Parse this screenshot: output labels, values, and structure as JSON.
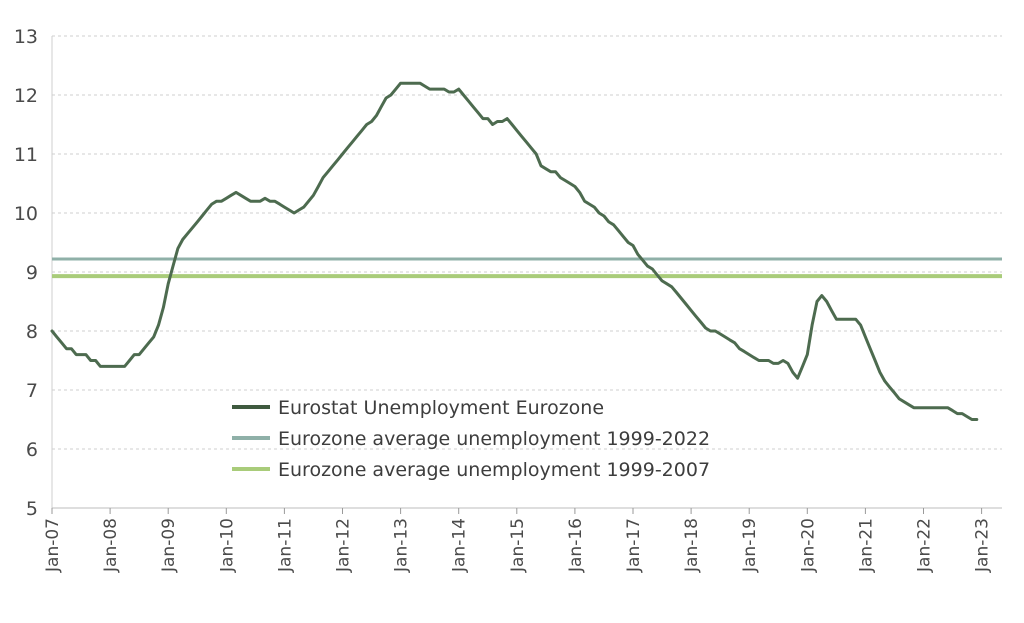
{
  "chart_data": {
    "type": "line",
    "title": "",
    "xlabel": "",
    "ylabel": "",
    "ylim": [
      5,
      13
    ],
    "grid": true,
    "legend_position": "bottom-left inside",
    "y_ticks": [
      "5",
      "6",
      "7",
      "8",
      "9",
      "10",
      "11",
      "12",
      "13"
    ],
    "x_ticks": [
      "Jan-07",
      "Jan-08",
      "Jan-09",
      "Jan-10",
      "Jan-11",
      "Jan-12",
      "Jan-13",
      "Jan-14",
      "Jan-15",
      "Jan-16",
      "Jan-17",
      "Jan-18",
      "Jan-19",
      "Jan-20",
      "Jan-21",
      "Jan-22",
      "Jan-23"
    ],
    "series": [
      {
        "name": "Eurostat Unemployment Eurozone",
        "color": "#4d6b4f",
        "x_start": "Jan-07",
        "values": [
          8.0,
          7.9,
          7.8,
          7.7,
          7.7,
          7.6,
          7.6,
          7.6,
          7.5,
          7.5,
          7.4,
          7.4,
          7.4,
          7.4,
          7.4,
          7.4,
          7.5,
          7.6,
          7.6,
          7.7,
          7.8,
          7.9,
          8.1,
          8.4,
          8.8,
          9.1,
          9.4,
          9.55,
          9.65,
          9.75,
          9.85,
          9.95,
          10.05,
          10.15,
          10.2,
          10.2,
          10.25,
          10.3,
          10.35,
          10.3,
          10.25,
          10.2,
          10.2,
          10.2,
          10.25,
          10.2,
          10.2,
          10.15,
          10.1,
          10.05,
          10.0,
          10.05,
          10.1,
          10.2,
          10.3,
          10.45,
          10.6,
          10.7,
          10.8,
          10.9,
          11.0,
          11.1,
          11.2,
          11.3,
          11.4,
          11.5,
          11.55,
          11.65,
          11.8,
          11.95,
          12.0,
          12.1,
          12.2,
          12.2,
          12.2,
          12.2,
          12.2,
          12.15,
          12.1,
          12.1,
          12.1,
          12.1,
          12.05,
          12.05,
          12.1,
          12.0,
          11.9,
          11.8,
          11.7,
          11.6,
          11.6,
          11.5,
          11.55,
          11.55,
          11.6,
          11.5,
          11.4,
          11.3,
          11.2,
          11.1,
          11.0,
          10.8,
          10.75,
          10.7,
          10.7,
          10.6,
          10.55,
          10.5,
          10.45,
          10.35,
          10.2,
          10.15,
          10.1,
          10.0,
          9.95,
          9.85,
          9.8,
          9.7,
          9.6,
          9.5,
          9.45,
          9.3,
          9.2,
          9.1,
          9.05,
          8.95,
          8.85,
          8.8,
          8.75,
          8.65,
          8.55,
          8.45,
          8.35,
          8.25,
          8.15,
          8.05,
          8.0,
          8.0,
          7.95,
          7.9,
          7.85,
          7.8,
          7.7,
          7.65,
          7.6,
          7.55,
          7.5,
          7.5,
          7.5,
          7.45,
          7.45,
          7.5,
          7.45,
          7.3,
          7.2,
          7.4,
          7.6,
          8.1,
          8.5,
          8.6,
          8.5,
          8.35,
          8.2,
          8.2,
          8.2,
          8.2,
          8.2,
          8.1,
          7.9,
          7.7,
          7.5,
          7.3,
          7.15,
          7.05,
          6.95,
          6.85,
          6.8,
          6.75,
          6.7,
          6.7,
          6.7,
          6.7,
          6.7,
          6.7,
          6.7,
          6.7,
          6.65,
          6.6,
          6.6,
          6.55,
          6.5,
          6.5
        ]
      },
      {
        "name": "Eurozone average unemployment 1999-2022",
        "color": "#8fb0a8",
        "constant": 9.22
      },
      {
        "name": "Eurozone average unemployment 1999-2007",
        "color": "#a9cc7a",
        "constant": 8.93
      }
    ]
  }
}
